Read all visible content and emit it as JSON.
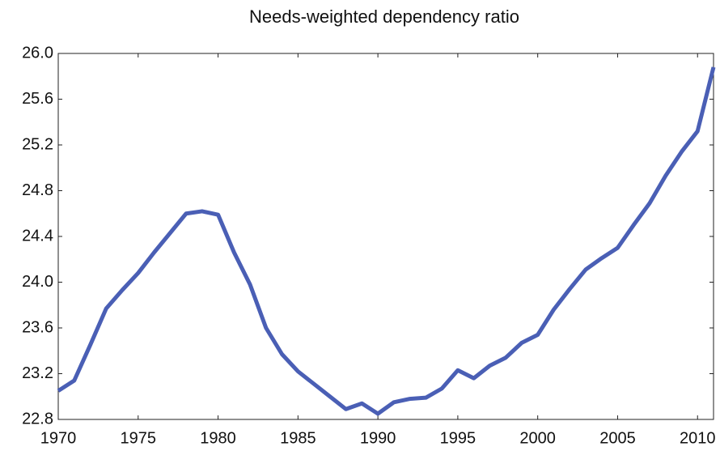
{
  "chart_data": {
    "type": "line",
    "title": "Needs-weighted dependency ratio",
    "x": [
      1970,
      1971,
      1972,
      1973,
      1974,
      1975,
      1976,
      1977,
      1978,
      1979,
      1980,
      1981,
      1982,
      1983,
      1984,
      1985,
      1986,
      1987,
      1988,
      1989,
      1990,
      1991,
      1992,
      1993,
      1994,
      1995,
      1996,
      1997,
      1998,
      1999,
      2000,
      2001,
      2002,
      2003,
      2004,
      2005,
      2006,
      2007,
      2008,
      2009,
      2010,
      2011
    ],
    "values": [
      23.05,
      23.14,
      23.45,
      23.77,
      23.93,
      24.08,
      24.26,
      24.43,
      24.6,
      24.62,
      24.59,
      24.26,
      23.98,
      23.6,
      23.37,
      23.22,
      23.11,
      23.0,
      22.89,
      22.94,
      22.85,
      22.95,
      22.98,
      22.99,
      23.07,
      23.23,
      23.16,
      23.27,
      23.34,
      23.47,
      23.54,
      23.76,
      23.94,
      24.11,
      24.21,
      24.3,
      24.5,
      24.69,
      24.93,
      25.14,
      25.32,
      25.88
    ],
    "color": "#4a5fb5",
    "xlim": [
      1970,
      2011
    ],
    "xticks": [
      1970,
      1975,
      1980,
      1985,
      1990,
      1995,
      2000,
      2005,
      2010
    ],
    "ylim": [
      22.8,
      26.0
    ],
    "yticks": [
      22.8,
      23.2,
      23.6,
      {
        "value": 24.0,
        "label": "24.0"
      },
      24.4,
      24.8,
      25.2,
      25.6,
      {
        "value": 26.0,
        "label": "26.0"
      }
    ]
  }
}
